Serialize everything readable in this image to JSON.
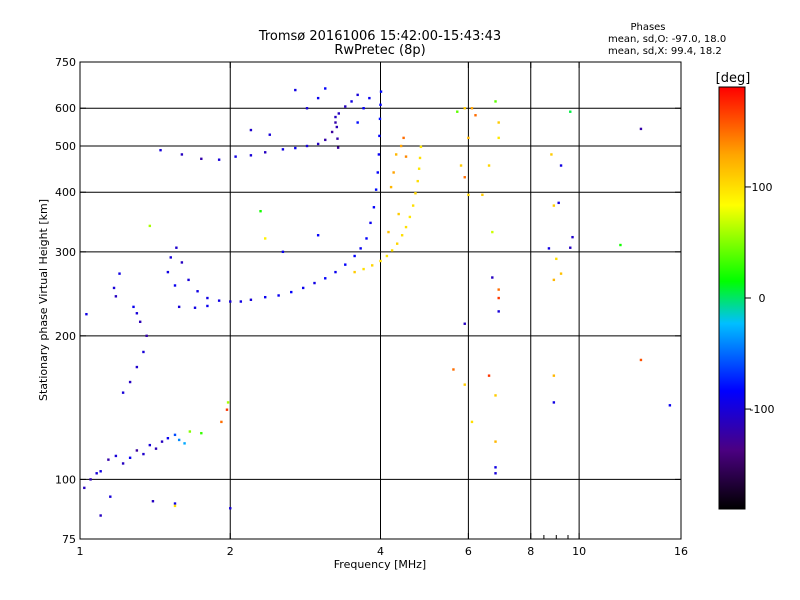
{
  "chart_data": {
    "type": "scatter",
    "title": "Tromsø 20161006 15:42:00-15:43:43",
    "subtitle": "RwPretec (8p)",
    "stats": {
      "header": "Phases",
      "line1": "mean, sd,O: -97.0, 18.0",
      "line2": "mean, sd,X: 99.4, 18.2"
    },
    "xlabel": "Frequency [MHz]",
    "ylabel": "Stationary phase Virtual Height [km]",
    "xscale": "log",
    "yscale": "log",
    "xlim": [
      1,
      16
    ],
    "ylim": [
      75,
      750
    ],
    "x_ticks": [
      "1",
      "2",
      "4",
      "6",
      "8",
      "10",
      "16"
    ],
    "x_tick_values": [
      1,
      2,
      4,
      6,
      8,
      10,
      16
    ],
    "x_minor_tick_values": [
      8.5,
      9,
      9.5
    ],
    "x_grid": [
      2,
      4,
      6,
      8,
      10
    ],
    "y_ticks": [
      "75",
      "100",
      "200",
      "300",
      "400",
      "500",
      "600",
      "750"
    ],
    "y_tick_values": [
      75,
      100,
      200,
      300,
      400,
      500,
      600,
      750
    ],
    "y_grid": [
      100,
      200,
      300,
      400,
      500,
      600
    ],
    "grid": true,
    "colorbar": {
      "label": "[deg]",
      "range": [
        -190,
        190
      ],
      "ticks": [
        "100",
        "0",
        "-100"
      ],
      "tick_values": [
        100,
        0,
        -100
      ],
      "colors": [
        "#000000",
        "#4b0082",
        "#0000ff",
        "#00bfff",
        "#00ff00",
        "#ffff00",
        "#ffa500",
        "#ff0000"
      ]
    },
    "series": [
      {
        "name": "O",
        "phase_mean": -97.0,
        "phase_sd": 18.0,
        "points": [
          [
            1.02,
            96,
            -110
          ],
          [
            1.05,
            100,
            -115
          ],
          [
            1.08,
            103,
            -100
          ],
          [
            1.1,
            104,
            -95
          ],
          [
            1.14,
            110,
            -120
          ],
          [
            1.18,
            112,
            -100
          ],
          [
            1.22,
            108,
            -110
          ],
          [
            1.26,
            111,
            -90
          ],
          [
            1.3,
            115,
            -125
          ],
          [
            1.34,
            113,
            -105
          ],
          [
            1.38,
            118,
            -100
          ],
          [
            1.42,
            116,
            -115
          ],
          [
            1.46,
            120,
            -110
          ],
          [
            1.5,
            122,
            -90
          ],
          [
            1.55,
            124,
            -60
          ],
          [
            1.58,
            121,
            -40
          ],
          [
            1.62,
            119,
            -30
          ],
          [
            1.15,
            92,
            -100
          ],
          [
            1.4,
            90,
            -110
          ],
          [
            1.55,
            89,
            -95
          ],
          [
            1.22,
            152,
            -100
          ],
          [
            1.26,
            160,
            -110
          ],
          [
            1.3,
            172,
            -105
          ],
          [
            1.34,
            185,
            -100
          ],
          [
            1.36,
            200,
            -120
          ],
          [
            1.32,
            214,
            -115
          ],
          [
            1.3,
            223,
            -100
          ],
          [
            1.28,
            230,
            -90
          ],
          [
            1.18,
            242,
            -110
          ],
          [
            1.17,
            252,
            -100
          ],
          [
            1.2,
            270,
            -95
          ],
          [
            1.03,
            222,
            -95
          ],
          [
            1.55,
            255,
            -90
          ],
          [
            1.5,
            272,
            -95
          ],
          [
            1.52,
            292,
            -100
          ],
          [
            1.56,
            306,
            -105
          ],
          [
            1.6,
            285,
            -110
          ],
          [
            1.65,
            262,
            -100
          ],
          [
            1.72,
            248,
            -95
          ],
          [
            1.8,
            240,
            -95
          ],
          [
            1.9,
            237,
            -95
          ],
          [
            2.0,
            236,
            -100
          ],
          [
            2.1,
            236,
            -95
          ],
          [
            2.2,
            238,
            -100
          ],
          [
            2.35,
            241,
            -90
          ],
          [
            2.5,
            243,
            -90
          ],
          [
            2.65,
            247,
            -85
          ],
          [
            2.8,
            252,
            -90
          ],
          [
            2.95,
            258,
            -95
          ],
          [
            3.1,
            264,
            -85
          ],
          [
            3.25,
            272,
            -90
          ],
          [
            3.4,
            282,
            -85
          ],
          [
            3.55,
            294,
            -85
          ],
          [
            3.65,
            305,
            -90
          ],
          [
            3.75,
            320,
            -85
          ],
          [
            3.82,
            345,
            -90
          ],
          [
            3.88,
            372,
            -85
          ],
          [
            3.92,
            405,
            -80
          ],
          [
            3.95,
            440,
            -85
          ],
          [
            3.97,
            480,
            -90
          ],
          [
            3.98,
            525,
            -85
          ],
          [
            3.99,
            570,
            -80
          ],
          [
            4.0,
            610,
            -85
          ],
          [
            4.01,
            650,
            -80
          ],
          [
            3.6,
            560,
            -80
          ],
          [
            3.7,
            600,
            -85
          ],
          [
            3.8,
            630,
            -90
          ],
          [
            1.58,
            230,
            -100
          ],
          [
            1.7,
            229,
            -95
          ],
          [
            1.8,
            231,
            -90
          ],
          [
            1.45,
            490,
            -100
          ],
          [
            1.6,
            480,
            -110
          ],
          [
            1.75,
            470,
            -120
          ],
          [
            1.9,
            468,
            -100
          ],
          [
            2.05,
            475,
            -95
          ],
          [
            2.2,
            478,
            -100
          ],
          [
            2.35,
            485,
            -110
          ],
          [
            2.55,
            492,
            -95
          ],
          [
            2.7,
            495,
            -90
          ],
          [
            2.85,
            500,
            -100
          ],
          [
            3.0,
            505,
            -110
          ],
          [
            3.1,
            515,
            -120
          ],
          [
            3.2,
            535,
            -125
          ],
          [
            3.25,
            560,
            -120
          ],
          [
            3.3,
            585,
            -110
          ],
          [
            3.4,
            605,
            -110
          ],
          [
            3.5,
            620,
            -95
          ],
          [
            3.6,
            640,
            -100
          ],
          [
            3.25,
            575,
            -110
          ],
          [
            3.27,
            548,
            -115
          ],
          [
            3.28,
            518,
            -120
          ],
          [
            3.29,
            496,
            -125
          ],
          [
            2.2,
            540,
            -105
          ],
          [
            2.4,
            528,
            -100
          ],
          [
            2.7,
            655,
            -95
          ],
          [
            2.85,
            600,
            -100
          ],
          [
            3.0,
            630,
            -90
          ],
          [
            3.1,
            660,
            -85
          ],
          [
            2.55,
            300,
            -90
          ],
          [
            3.0,
            325,
            -85
          ],
          [
            5.9,
            212,
            -110
          ],
          [
            6.7,
            265,
            -110
          ],
          [
            6.9,
            225,
            -100
          ],
          [
            6.8,
            103,
            -100
          ],
          [
            6.8,
            106,
            -95
          ],
          [
            9.6,
            306,
            -110
          ],
          [
            9.7,
            322,
            -105
          ],
          [
            9.1,
            380,
            -100
          ],
          [
            9.2,
            455,
            -95
          ],
          [
            8.7,
            305,
            -95
          ],
          [
            8.9,
            145,
            -95
          ],
          [
            13.3,
            543,
            -120
          ],
          [
            15.2,
            143,
            -90
          ],
          [
            2.0,
            87,
            -100
          ],
          [
            1.1,
            84,
            -110
          ]
        ]
      },
      {
        "name": "X",
        "phase_mean": 99.4,
        "phase_sd": 18.2,
        "points": [
          [
            3.55,
            272,
            110
          ],
          [
            3.7,
            276,
            100
          ],
          [
            3.85,
            281,
            105
          ],
          [
            4.0,
            287,
            100
          ],
          [
            4.12,
            294,
            95
          ],
          [
            4.22,
            302,
            100
          ],
          [
            4.32,
            312,
            105
          ],
          [
            4.42,
            325,
            100
          ],
          [
            4.5,
            338,
            100
          ],
          [
            4.58,
            355,
            95
          ],
          [
            4.65,
            375,
            100
          ],
          [
            4.7,
            398,
            105
          ],
          [
            4.75,
            422,
            100
          ],
          [
            4.78,
            448,
            95
          ],
          [
            4.8,
            472,
            100
          ],
          [
            4.82,
            498,
            95
          ],
          [
            4.35,
            360,
            110
          ],
          [
            4.2,
            410,
            120
          ],
          [
            4.25,
            440,
            130
          ],
          [
            4.3,
            480,
            120
          ],
          [
            4.4,
            500,
            130
          ],
          [
            4.5,
            475,
            140
          ],
          [
            4.15,
            330,
            115
          ],
          [
            4.45,
            520,
            150
          ],
          [
            5.8,
            455,
            110
          ],
          [
            5.9,
            430,
            150
          ],
          [
            6.0,
            520,
            120
          ],
          [
            6.1,
            600,
            130
          ],
          [
            6.0,
            395,
            105
          ],
          [
            6.4,
            395,
            110
          ],
          [
            6.6,
            455,
            105
          ],
          [
            6.7,
            330,
            70
          ],
          [
            6.9,
            520,
            95
          ],
          [
            6.8,
            620,
            40
          ],
          [
            6.9,
            560,
            110
          ],
          [
            6.9,
            240,
            170
          ],
          [
            6.9,
            250,
            150
          ],
          [
            5.6,
            170,
            150
          ],
          [
            5.9,
            158,
            110
          ],
          [
            6.1,
            132,
            100
          ],
          [
            6.6,
            165,
            170
          ],
          [
            6.8,
            150,
            110
          ],
          [
            6.8,
            120,
            120
          ],
          [
            8.9,
            375,
            110
          ],
          [
            8.9,
            262,
            120
          ],
          [
            9.0,
            290,
            100
          ],
          [
            8.8,
            480,
            110
          ],
          [
            8.9,
            165,
            120
          ],
          [
            9.2,
            270,
            115
          ],
          [
            13.3,
            178,
            160
          ],
          [
            12.1,
            310,
            20
          ],
          [
            9.6,
            590,
            5
          ],
          [
            5.9,
            600,
            110
          ],
          [
            6.2,
            580,
            150
          ],
          [
            5.7,
            590,
            40
          ],
          [
            1.92,
            132,
            150
          ],
          [
            1.97,
            140,
            170
          ],
          [
            1.98,
            145,
            60
          ],
          [
            1.66,
            126,
            50
          ],
          [
            1.75,
            125,
            30
          ],
          [
            1.55,
            88,
            100
          ],
          [
            1.38,
            340,
            60
          ],
          [
            2.3,
            365,
            20
          ],
          [
            2.35,
            320,
            90
          ]
        ]
      }
    ]
  }
}
